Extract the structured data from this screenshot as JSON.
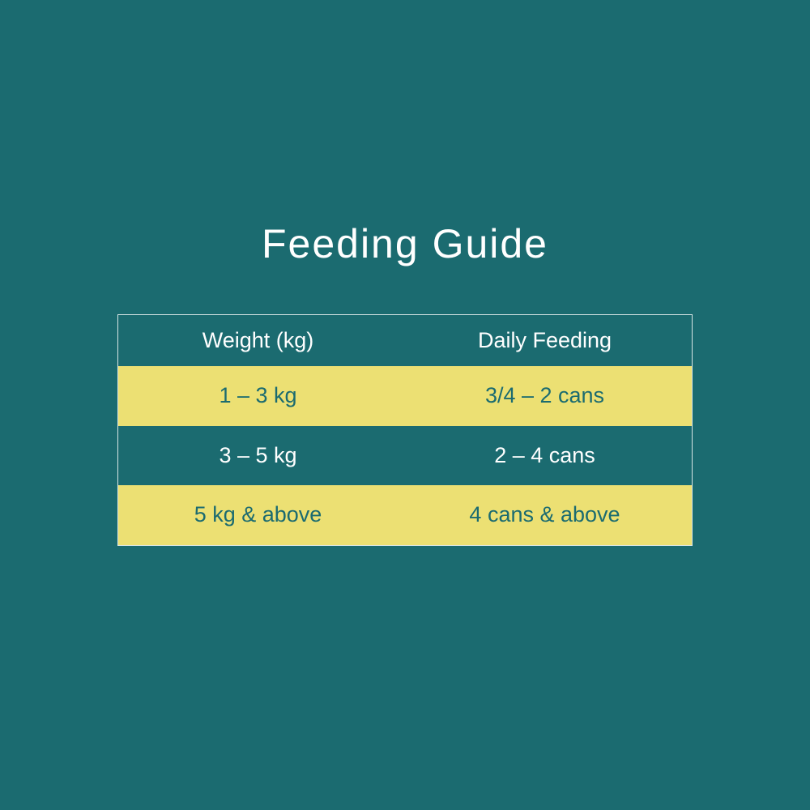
{
  "title": "Feeding Guide",
  "table": {
    "header": [
      "Weight (kg)",
      "Daily Feeding"
    ],
    "rows": [
      [
        "1 – 3 kg",
        "3/4 – 2 cans"
      ],
      [
        "3 – 5 kg",
        "2 – 4 cans"
      ],
      [
        "5 kg & above",
        "4 cans & above"
      ]
    ]
  }
}
